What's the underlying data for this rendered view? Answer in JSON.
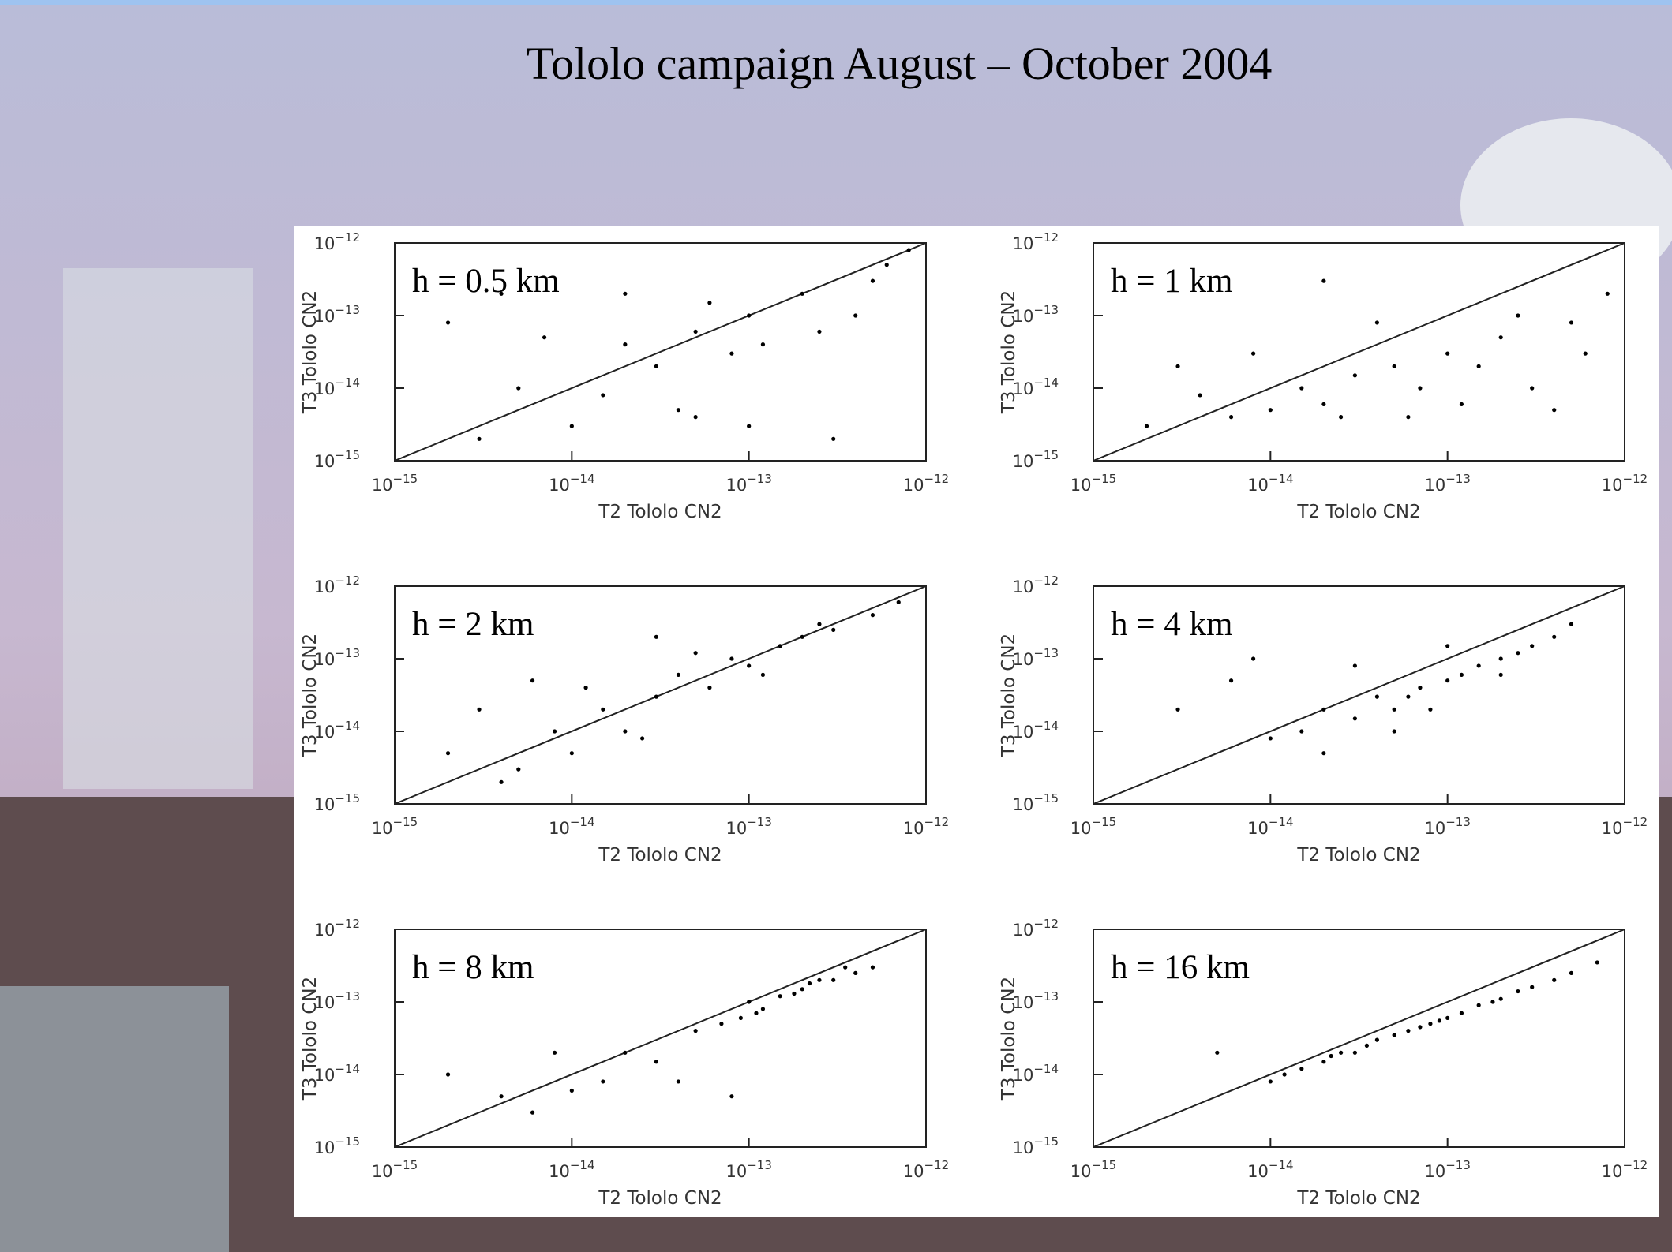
{
  "title": "Tololo campaign August – October 2004",
  "chart_data": [
    {
      "type": "scatter",
      "annotation": "h = 0.5 km",
      "xlabel": "T2 Tololo CN2",
      "ylabel": "T3 Tololo CN2",
      "log_x": true,
      "log_y": true,
      "diagonal": true,
      "color": "#000000",
      "xlim": [
        1e-15,
        1e-12
      ],
      "ylim": [
        1e-15,
        1e-12
      ],
      "xticks": [
        {
          "value": 1e-15,
          "label": "10",
          "exponent": "−15"
        },
        {
          "value": 1e-14,
          "label": "10",
          "exponent": "−14"
        },
        {
          "value": 1e-13,
          "label": "10",
          "exponent": "−13"
        },
        {
          "value": 1e-12,
          "label": "10",
          "exponent": "−12"
        }
      ],
      "yticks": [
        {
          "value": 1e-15,
          "label": "10",
          "exponent": "−15"
        },
        {
          "value": 1e-14,
          "label": "10",
          "exponent": "−14"
        },
        {
          "value": 1e-13,
          "label": "10",
          "exponent": "−13"
        },
        {
          "value": 1e-12,
          "label": "10",
          "exponent": "−12"
        }
      ],
      "x": [
        2e-15,
        5e-15,
        1e-14,
        2e-14,
        3e-14,
        5e-14,
        8e-14,
        1e-13,
        2e-13,
        4e-13,
        6e-13,
        3e-15,
        7e-15,
        1.5e-14,
        4e-14,
        6e-14,
        1.2e-13,
        2.5e-13,
        5e-13,
        8e-13,
        4e-15,
        2e-14,
        5e-14,
        1e-13,
        3e-13
      ],
      "values": [
        8e-14,
        1e-14,
        3e-15,
        4e-14,
        2e-14,
        6e-14,
        3e-14,
        1e-13,
        2e-13,
        1e-13,
        5e-13,
        2e-15,
        5e-14,
        8e-15,
        5e-15,
        1.5e-13,
        4e-14,
        6e-14,
        3e-13,
        8e-13,
        2e-13,
        2e-13,
        4e-15,
        3e-15,
        2e-15
      ]
    },
    {
      "type": "scatter",
      "annotation": "h = 1 km",
      "xlabel": "T2 Tololo CN2",
      "ylabel": "T3 Tololo CN2",
      "log_x": true,
      "log_y": true,
      "diagonal": true,
      "color": "#000000",
      "xlim": [
        1e-15,
        1e-12
      ],
      "ylim": [
        1e-15,
        1e-12
      ],
      "xticks": [
        {
          "value": 1e-15,
          "label": "10",
          "exponent": "−15"
        },
        {
          "value": 1e-14,
          "label": "10",
          "exponent": "−14"
        },
        {
          "value": 1e-13,
          "label": "10",
          "exponent": "−13"
        },
        {
          "value": 1e-12,
          "label": "10",
          "exponent": "−12"
        }
      ],
      "yticks": [
        {
          "value": 1e-15,
          "label": "10",
          "exponent": "−15"
        },
        {
          "value": 1e-14,
          "label": "10",
          "exponent": "−14"
        },
        {
          "value": 1e-13,
          "label": "10",
          "exponent": "−13"
        },
        {
          "value": 1e-12,
          "label": "10",
          "exponent": "−12"
        }
      ],
      "x": [
        2e-15,
        4e-15,
        6e-15,
        1e-14,
        1.5e-14,
        2e-14,
        3e-14,
        5e-14,
        7e-14,
        1e-13,
        1.5e-13,
        2e-13,
        3e-13,
        5e-13,
        8e-13,
        3e-15,
        8e-15,
        2.5e-14,
        4e-14,
        6e-14,
        1.2e-13,
        2.5e-13,
        4e-13,
        6e-13,
        2e-14
      ],
      "values": [
        3e-15,
        8e-15,
        4e-15,
        5e-15,
        1e-14,
        6e-15,
        1.5e-14,
        2e-14,
        1e-14,
        3e-14,
        2e-14,
        5e-14,
        1e-14,
        8e-14,
        2e-13,
        2e-14,
        3e-14,
        4e-15,
        8e-14,
        4e-15,
        6e-15,
        1e-13,
        5e-15,
        3e-14,
        3e-13
      ]
    },
    {
      "type": "scatter",
      "annotation": "h = 2 km",
      "xlabel": "T2 Tololo CN2",
      "ylabel": "T3 Tololo CN2",
      "log_x": true,
      "log_y": true,
      "diagonal": true,
      "color": "#000000",
      "xlim": [
        1e-15,
        1e-12
      ],
      "ylim": [
        1e-15,
        1e-12
      ],
      "xticks": [
        {
          "value": 1e-15,
          "label": "10",
          "exponent": "−15"
        },
        {
          "value": 1e-14,
          "label": "10",
          "exponent": "−14"
        },
        {
          "value": 1e-13,
          "label": "10",
          "exponent": "−13"
        },
        {
          "value": 1e-12,
          "label": "10",
          "exponent": "−12"
        }
      ],
      "yticks": [
        {
          "value": 1e-15,
          "label": "10",
          "exponent": "−15"
        },
        {
          "value": 1e-14,
          "label": "10",
          "exponent": "−14"
        },
        {
          "value": 1e-13,
          "label": "10",
          "exponent": "−13"
        },
        {
          "value": 1e-12,
          "label": "10",
          "exponent": "−12"
        }
      ],
      "x": [
        2e-15,
        3e-15,
        5e-15,
        8e-15,
        1e-14,
        1.5e-14,
        2e-14,
        3e-14,
        4e-14,
        6e-14,
        8e-14,
        1e-13,
        1.5e-13,
        2e-13,
        3e-13,
        5e-13,
        7e-13,
        4e-15,
        1.2e-14,
        2.5e-14,
        5e-14,
        1.2e-13,
        2.5e-13,
        6e-15,
        3e-14
      ],
      "values": [
        5e-15,
        2e-14,
        3e-15,
        1e-14,
        5e-15,
        2e-14,
        1e-14,
        3e-14,
        6e-14,
        4e-14,
        1e-13,
        8e-14,
        1.5e-13,
        2e-13,
        2.5e-13,
        4e-13,
        6e-13,
        2e-15,
        4e-14,
        8e-15,
        1.2e-13,
        6e-14,
        3e-13,
        5e-14,
        2e-13
      ]
    },
    {
      "type": "scatter",
      "annotation": "h = 4 km",
      "xlabel": "T2 Tololo CN2",
      "ylabel": "T3 Tololo CN2",
      "log_x": true,
      "log_y": true,
      "diagonal": true,
      "color": "#000000",
      "xlim": [
        1e-15,
        1e-12
      ],
      "ylim": [
        1e-15,
        1e-12
      ],
      "xticks": [
        {
          "value": 1e-15,
          "label": "10",
          "exponent": "−15"
        },
        {
          "value": 1e-14,
          "label": "10",
          "exponent": "−14"
        },
        {
          "value": 1e-13,
          "label": "10",
          "exponent": "−13"
        },
        {
          "value": 1e-12,
          "label": "10",
          "exponent": "−12"
        }
      ],
      "yticks": [
        {
          "value": 1e-15,
          "label": "10",
          "exponent": "−15"
        },
        {
          "value": 1e-14,
          "label": "10",
          "exponent": "−14"
        },
        {
          "value": 1e-13,
          "label": "10",
          "exponent": "−13"
        },
        {
          "value": 1e-12,
          "label": "10",
          "exponent": "−12"
        }
      ],
      "x": [
        3e-15,
        6e-15,
        1e-14,
        1.5e-14,
        2e-14,
        3e-14,
        4e-14,
        5e-14,
        7e-14,
        1e-13,
        1.2e-13,
        1.5e-13,
        2e-13,
        2.5e-13,
        3e-13,
        4e-13,
        5e-13,
        2e-14,
        3e-14,
        5e-14,
        8e-14,
        1e-13,
        2e-13,
        8e-15,
        6e-14
      ],
      "values": [
        2e-14,
        5e-14,
        8e-15,
        1e-14,
        2e-14,
        1.5e-14,
        3e-14,
        2e-14,
        4e-14,
        5e-14,
        6e-14,
        8e-14,
        1e-13,
        1.2e-13,
        1.5e-13,
        2e-13,
        3e-13,
        5e-15,
        8e-14,
        1e-14,
        2e-14,
        1.5e-13,
        6e-14,
        1e-13,
        3e-14
      ]
    },
    {
      "type": "scatter",
      "annotation": "h = 8 km",
      "xlabel": "T2 Tololo CN2",
      "ylabel": "T3 Tololo CN2",
      "log_x": true,
      "log_y": true,
      "diagonal": true,
      "color": "#000000",
      "xlim": [
        1e-15,
        1e-12
      ],
      "ylim": [
        1e-15,
        1e-12
      ],
      "xticks": [
        {
          "value": 1e-15,
          "label": "10",
          "exponent": "−15"
        },
        {
          "value": 1e-14,
          "label": "10",
          "exponent": "−14"
        },
        {
          "value": 1e-13,
          "label": "10",
          "exponent": "−13"
        },
        {
          "value": 1e-12,
          "label": "10",
          "exponent": "−12"
        }
      ],
      "yticks": [
        {
          "value": 1e-15,
          "label": "10",
          "exponent": "−15"
        },
        {
          "value": 1e-14,
          "label": "10",
          "exponent": "−14"
        },
        {
          "value": 1e-13,
          "label": "10",
          "exponent": "−13"
        },
        {
          "value": 1e-12,
          "label": "10",
          "exponent": "−12"
        }
      ],
      "x": [
        2e-15,
        4e-15,
        8e-15,
        1e-14,
        2e-14,
        3e-14,
        5e-14,
        7e-14,
        9e-14,
        1e-13,
        1.2e-13,
        1.5e-13,
        2e-13,
        2.5e-13,
        3e-13,
        4e-13,
        5e-13,
        6e-15,
        1.5e-14,
        4e-14,
        8e-14,
        1.1e-13,
        1.8e-13,
        2.2e-13,
        3.5e-13
      ],
      "values": [
        1e-14,
        5e-15,
        2e-14,
        6e-15,
        2e-14,
        1.5e-14,
        4e-14,
        5e-14,
        6e-14,
        1e-13,
        8e-14,
        1.2e-13,
        1.5e-13,
        2e-13,
        2e-13,
        2.5e-13,
        3e-13,
        3e-15,
        8e-15,
        8e-15,
        5e-15,
        7e-14,
        1.3e-13,
        1.8e-13,
        3e-13
      ]
    },
    {
      "type": "scatter",
      "annotation": "h = 16 km",
      "xlabel": "T2 Tololo CN2",
      "ylabel": "T3 Tololo CN2",
      "log_x": true,
      "log_y": true,
      "diagonal": true,
      "color": "#000000",
      "xlim": [
        1e-15,
        1e-12
      ],
      "ylim": [
        1e-15,
        1e-12
      ],
      "xticks": [
        {
          "value": 1e-15,
          "label": "10",
          "exponent": "−15"
        },
        {
          "value": 1e-14,
          "label": "10",
          "exponent": "−14"
        },
        {
          "value": 1e-13,
          "label": "10",
          "exponent": "−13"
        },
        {
          "value": 1e-12,
          "label": "10",
          "exponent": "−12"
        }
      ],
      "yticks": [
        {
          "value": 1e-15,
          "label": "10",
          "exponent": "−15"
        },
        {
          "value": 1e-14,
          "label": "10",
          "exponent": "−14"
        },
        {
          "value": 1e-13,
          "label": "10",
          "exponent": "−13"
        },
        {
          "value": 1e-12,
          "label": "10",
          "exponent": "−12"
        }
      ],
      "x": [
        5e-15,
        1e-14,
        1.5e-14,
        2e-14,
        2.5e-14,
        3e-14,
        4e-14,
        5e-14,
        6e-14,
        8e-14,
        1e-13,
        1.2e-13,
        1.5e-13,
        2e-13,
        2.5e-13,
        3e-13,
        4e-13,
        5e-13,
        7e-13,
        1.2e-14,
        3.5e-14,
        7e-14,
        9e-14,
        1.8e-13,
        2.2e-14
      ],
      "values": [
        2e-14,
        8e-15,
        1.2e-14,
        1.5e-14,
        2e-14,
        2e-14,
        3e-14,
        3.5e-14,
        4e-14,
        5e-14,
        6e-14,
        7e-14,
        9e-14,
        1.1e-13,
        1.4e-13,
        1.6e-13,
        2e-13,
        2.5e-13,
        3.5e-13,
        1e-14,
        2.5e-14,
        4.5e-14,
        5.5e-14,
        1e-13,
        1.8e-14
      ]
    }
  ]
}
